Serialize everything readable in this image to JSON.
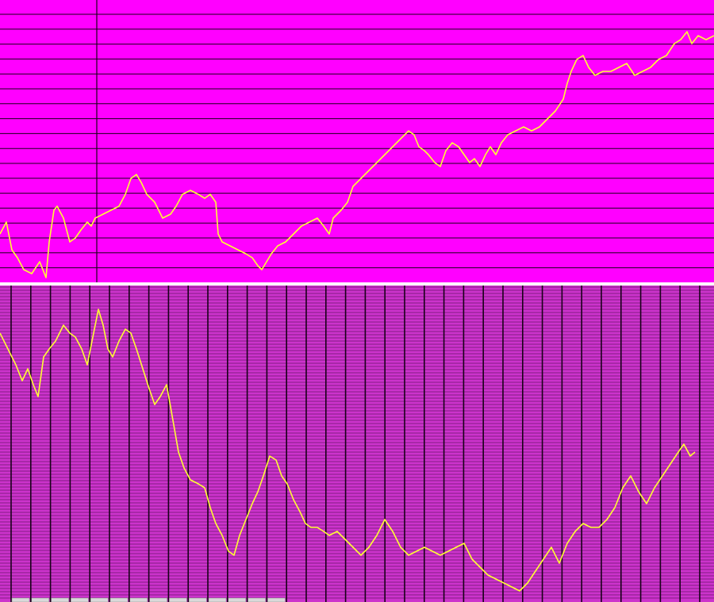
{
  "colors": {
    "page_background": "#ffffff",
    "top_background": "#ff00ff",
    "bottom_background": "#cc33cc",
    "grid_line": "#1a001a",
    "separator": "#ffffff",
    "series_line": "#ffff33",
    "tab_fill": "#d9d9d9"
  },
  "chart_data": [
    {
      "type": "line",
      "title": "",
      "xlabel": "",
      "ylabel": "",
      "grid": true,
      "xlim": [
        0,
        900
      ],
      "ylim": [
        0,
        355
      ],
      "series": [
        {
          "x": [
            0,
            8,
            15,
            22,
            30,
            40,
            50,
            58,
            62,
            68,
            72,
            80,
            88,
            95,
            102,
            110,
            115,
            120,
            130,
            140,
            150,
            158,
            165,
            172,
            178,
            185,
            195,
            205,
            215,
            222,
            230,
            240,
            250,
            258,
            265,
            272,
            275,
            280,
            290,
            300,
            310,
            318,
            325,
            330,
            336,
            342,
            350,
            360,
            370,
            380,
            390,
            400,
            408,
            415,
            420,
            430,
            438,
            445,
            455,
            465,
            475,
            485,
            495,
            505,
            515,
            522,
            528,
            535,
            540,
            548,
            555,
            562,
            570,
            578,
            585,
            592,
            598,
            605,
            612,
            618,
            625,
            632,
            640,
            650,
            660,
            670,
            680,
            690,
            700,
            710,
            715,
            720,
            727,
            735,
            742,
            750,
            760,
            770,
            780,
            790,
            800,
            810,
            820,
            830,
            840,
            850,
            858,
            866,
            872,
            880,
            890,
            900
          ],
          "y": [
            60,
            75,
            40,
            30,
            15,
            10,
            25,
            5,
            50,
            90,
            95,
            80,
            50,
            55,
            65,
            75,
            70,
            80,
            85,
            90,
            95,
            110,
            130,
            135,
            125,
            110,
            100,
            80,
            85,
            95,
            110,
            115,
            110,
            105,
            110,
            100,
            60,
            50,
            45,
            40,
            35,
            30,
            20,
            15,
            25,
            35,
            45,
            50,
            60,
            70,
            75,
            80,
            70,
            60,
            80,
            90,
            100,
            120,
            130,
            140,
            150,
            160,
            170,
            180,
            190,
            185,
            170,
            165,
            160,
            150,
            145,
            165,
            175,
            170,
            160,
            150,
            155,
            145,
            160,
            170,
            160,
            175,
            185,
            190,
            195,
            190,
            195,
            205,
            215,
            230,
            250,
            265,
            280,
            285,
            270,
            260,
            265,
            265,
            270,
            275,
            260,
            265,
            270,
            280,
            285,
            300,
            305,
            315,
            300,
            310,
            305,
            310
          ]
        }
      ]
    },
    {
      "type": "line",
      "title": "",
      "xlabel": "",
      "ylabel": "",
      "grid": true,
      "xlim": [
        0,
        900
      ],
      "ylim": [
        0,
        400
      ],
      "series": [
        {
          "x": [
            0,
            10,
            20,
            28,
            35,
            42,
            48,
            55,
            62,
            70,
            80,
            88,
            95,
            103,
            110,
            118,
            124,
            130,
            136,
            142,
            150,
            158,
            165,
            172,
            180,
            188,
            195,
            202,
            210,
            218,
            225,
            232,
            240,
            250,
            258,
            265,
            272,
            280,
            288,
            295,
            302,
            310,
            318,
            325,
            332,
            340,
            348,
            355,
            362,
            370,
            378,
            385,
            392,
            400,
            408,
            415,
            425,
            435,
            445,
            455,
            465,
            475,
            485,
            495,
            505,
            515,
            525,
            535,
            545,
            555,
            565,
            575,
            585,
            595,
            605,
            615,
            625,
            635,
            645,
            655,
            665,
            675,
            685,
            695,
            705,
            715,
            725,
            735,
            745,
            755,
            765,
            775,
            785,
            795,
            805,
            815,
            825,
            835,
            845,
            855,
            862,
            870,
            876
          ],
          "y": [
            340,
            320,
            300,
            280,
            295,
            275,
            260,
            310,
            320,
            330,
            350,
            340,
            335,
            320,
            300,
            340,
            370,
            350,
            320,
            310,
            330,
            345,
            340,
            320,
            295,
            270,
            250,
            260,
            275,
            230,
            190,
            170,
            155,
            150,
            145,
            120,
            100,
            85,
            65,
            60,
            85,
            105,
            125,
            140,
            160,
            185,
            180,
            160,
            150,
            130,
            115,
            100,
            95,
            95,
            90,
            85,
            90,
            80,
            70,
            60,
            70,
            85,
            105,
            90,
            70,
            60,
            65,
            70,
            65,
            60,
            65,
            70,
            75,
            55,
            45,
            35,
            30,
            25,
            20,
            15,
            25,
            40,
            55,
            70,
            50,
            75,
            90,
            100,
            95,
            95,
            105,
            120,
            145,
            160,
            140,
            125,
            145,
            160,
            175,
            190,
            200,
            185,
            190
          ]
        }
      ]
    }
  ]
}
